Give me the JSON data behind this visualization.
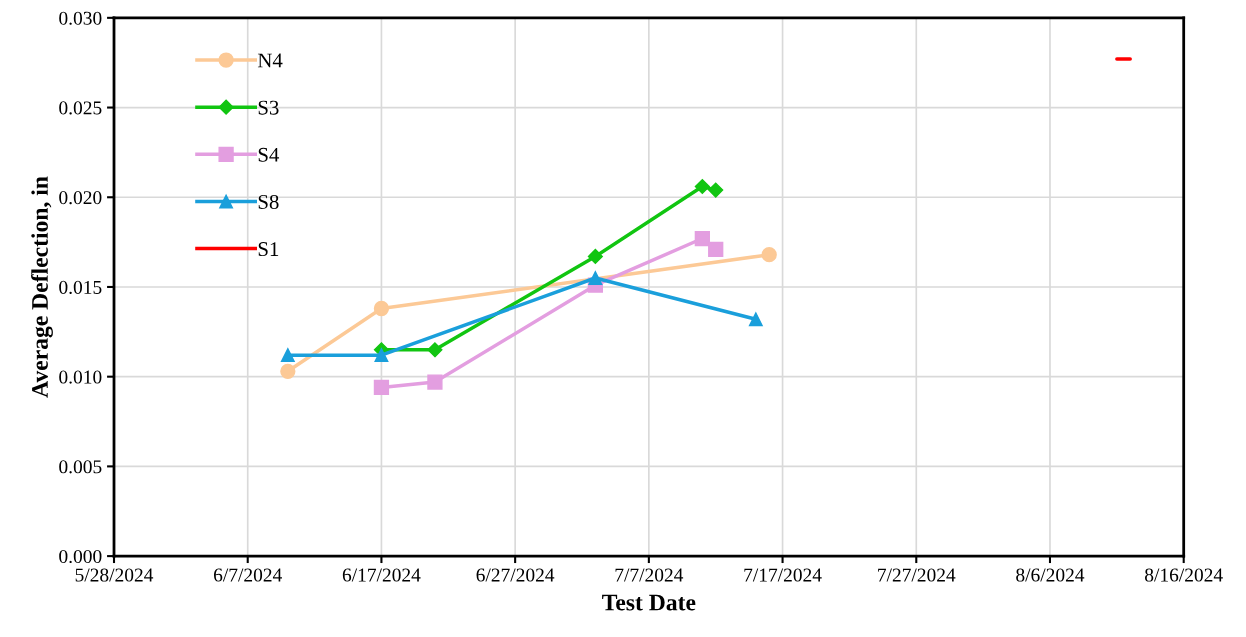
{
  "chart_data": {
    "type": "line",
    "xlabel": "Test Date",
    "ylabel": "Average Deflection, in",
    "xlim": [
      "2024-05-28",
      "2024-08-16"
    ],
    "xticks": [
      {
        "value": "2024-05-28",
        "label": "5/28/2024"
      },
      {
        "value": "2024-06-07",
        "label": "6/7/2024"
      },
      {
        "value": "2024-06-17",
        "label": "6/17/2024"
      },
      {
        "value": "2024-06-27",
        "label": "6/27/2024"
      },
      {
        "value": "2024-07-07",
        "label": "7/7/2024"
      },
      {
        "value": "2024-07-17",
        "label": "7/17/2024"
      },
      {
        "value": "2024-07-27",
        "label": "7/27/2024"
      },
      {
        "value": "2024-08-06",
        "label": "8/6/2024"
      },
      {
        "value": "2024-08-16",
        "label": "8/16/2024"
      }
    ],
    "ylim": [
      0,
      0.03
    ],
    "yticks": [
      {
        "value": 0,
        "label": "0.000"
      },
      {
        "value": 0.005,
        "label": "0.005"
      },
      {
        "value": 0.01,
        "label": "0.010"
      },
      {
        "value": 0.015,
        "label": "0.015"
      },
      {
        "value": 0.02,
        "label": "0.020"
      },
      {
        "value": 0.025,
        "label": "0.025"
      },
      {
        "value": 0.03,
        "label": "0.030"
      }
    ],
    "grid": true,
    "legend": "top left",
    "series": [
      {
        "name": "N4",
        "color": "#fcc996",
        "marker": "circle",
        "x": [
          "2024-06-10",
          "2024-06-17",
          "2024-07-16"
        ],
        "values": [
          0.0103,
          0.0138,
          0.0168
        ]
      },
      {
        "name": "S3",
        "color": "#11c511",
        "marker": "diamond",
        "x": [
          "2024-06-17",
          "2024-06-21",
          "2024-07-03",
          "2024-07-11",
          "2024-07-12"
        ],
        "values": [
          0.0115,
          0.0115,
          0.0167,
          0.0206,
          0.0204
        ]
      },
      {
        "name": "S4",
        "color": "#e39ee0",
        "marker": "square",
        "x": [
          "2024-06-17",
          "2024-06-21",
          "2024-07-03",
          "2024-07-11",
          "2024-07-12"
        ],
        "values": [
          0.0094,
          0.0097,
          0.0151,
          0.0177,
          0.0171
        ]
      },
      {
        "name": "S8",
        "color": "#1a9fdb",
        "marker": "triangle",
        "x": [
          "2024-06-10",
          "2024-06-17",
          "2024-07-03",
          "2024-07-15"
        ],
        "values": [
          0.0112,
          0.0112,
          0.0155,
          0.0132
        ]
      },
      {
        "name": "S1",
        "color": "#ff0000",
        "marker": "none",
        "x": [
          "2024-08-11T00:00",
          "2024-08-12T00:00"
        ],
        "values": [
          0.0277,
          0.0277
        ]
      }
    ]
  }
}
